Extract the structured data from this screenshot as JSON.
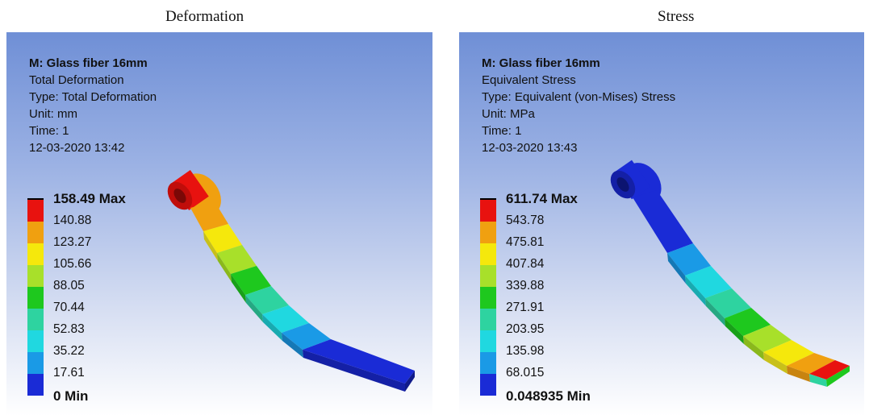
{
  "captions": {
    "left": "Deformation",
    "right": "Stress"
  },
  "deformation": {
    "material": "M: Glass fiber 16mm",
    "result": "Total Deformation",
    "type": "Type: Total Deformation",
    "unit": "Unit: mm",
    "time": "Time: 1",
    "timestamp": "12-03-2020 13:42",
    "legend": [
      "158.49 Max",
      "140.88",
      "123.27",
      "105.66",
      "88.05",
      "70.44",
      "52.83",
      "35.22",
      "17.61",
      "0 Min"
    ]
  },
  "stress": {
    "material": "M: Glass fiber 16mm",
    "result": "Equivalent Stress",
    "type": "Type: Equivalent (von-Mises) Stress",
    "unit": "Unit: MPa",
    "time": "Time: 1",
    "timestamp": "12-03-2020 13:43",
    "legend": [
      "611.74 Max",
      "543.78",
      "475.81",
      "407.84",
      "339.88",
      "271.91",
      "203.95",
      "135.98",
      "68.015",
      "0.048935 Min"
    ]
  },
  "colors": {
    "scale": [
      "#e8120f",
      "#f0a010",
      "#f5e80c",
      "#a8e02a",
      "#1ec81e",
      "#2ed3a0",
      "#20d8e0",
      "#1a9ae6",
      "#1a2bd6"
    ],
    "background_top": "#6f8fd6",
    "background_bottom": "#ffffff"
  }
}
